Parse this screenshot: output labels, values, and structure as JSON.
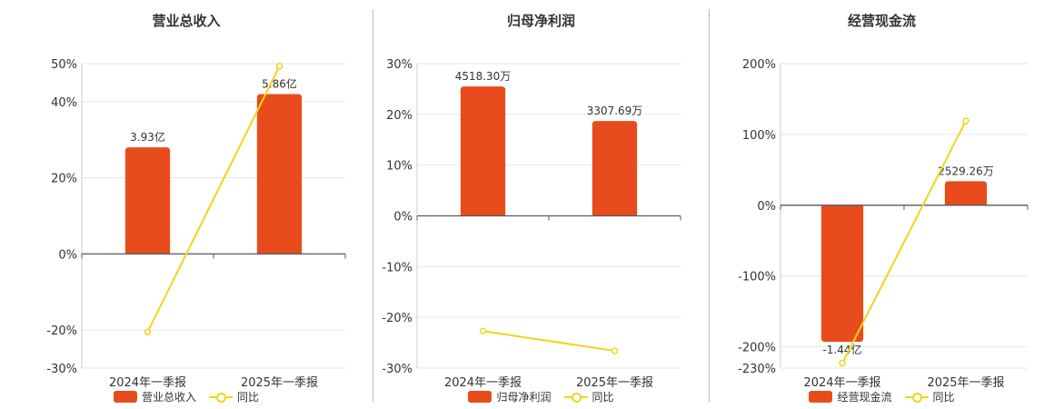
{
  "chart_data": [
    {
      "type": "bar",
      "title": "营业总收入",
      "categories": [
        "2024年一季报",
        "2025年一季报"
      ],
      "series": [
        {
          "name": "营业总收入",
          "type": "bar",
          "value_labels": [
            "3.93亿",
            "5.86亿"
          ],
          "percent": [
            28,
            42
          ]
        },
        {
          "name": "同比",
          "type": "line",
          "percent": [
            -20.5,
            49.3
          ]
        }
      ],
      "y_ticks": [
        {
          "v": 50,
          "label": "50%"
        },
        {
          "v": 40,
          "label": "40%"
        },
        {
          "v": 20,
          "label": "20%"
        },
        {
          "v": 0,
          "label": "0%"
        },
        {
          "v": -20,
          "label": "-20%"
        },
        {
          "v": -30,
          "label": "-30%"
        }
      ],
      "ylim": [
        -30,
        50
      ],
      "bar_color": "#e84c1c",
      "line_color": "#f4d31c"
    },
    {
      "type": "bar",
      "title": "归母净利润",
      "categories": [
        "2024年一季报",
        "2025年一季报"
      ],
      "series": [
        {
          "name": "归母净利润",
          "type": "bar",
          "value_labels": [
            "4518.30万",
            "3307.69万"
          ],
          "percent": [
            25.5,
            18.7
          ]
        },
        {
          "name": "同比",
          "type": "line",
          "percent": [
            -22.7,
            -26.6
          ]
        }
      ],
      "y_ticks": [
        {
          "v": 30,
          "label": "30%"
        },
        {
          "v": 20,
          "label": "20%"
        },
        {
          "v": 10,
          "label": "10%"
        },
        {
          "v": 0,
          "label": "0%"
        },
        {
          "v": -10,
          "label": "-10%"
        },
        {
          "v": -20,
          "label": "-20%"
        },
        {
          "v": -30,
          "label": "-30%"
        }
      ],
      "ylim": [
        -30,
        30
      ],
      "bar_color": "#e84c1c",
      "line_color": "#f4d31c"
    },
    {
      "type": "bar",
      "title": "经营现金流",
      "categories": [
        "2024年一季报",
        "2025年一季报"
      ],
      "series": [
        {
          "name": "经营现金流",
          "type": "bar",
          "value_labels": [
            "-1.44亿",
            "2529.26万"
          ],
          "percent": [
            -193,
            34
          ]
        },
        {
          "name": "同比",
          "type": "line",
          "percent": [
            -223,
            119
          ]
        }
      ],
      "y_ticks": [
        {
          "v": 200,
          "label": "200%"
        },
        {
          "v": 100,
          "label": "100%"
        },
        {
          "v": 0,
          "label": "0%"
        },
        {
          "v": -100,
          "label": "-100%"
        },
        {
          "v": -200,
          "label": "-200%"
        },
        {
          "v": -230,
          "label": "-230%"
        }
      ],
      "ylim": [
        -230,
        200
      ],
      "bar_color": "#e84c1c",
      "line_color": "#f4d31c"
    }
  ],
  "legend": [
    {
      "bar": "营业总收入",
      "line": "同比"
    },
    {
      "bar": "归母净利润",
      "line": "同比"
    },
    {
      "bar": "经营现金流",
      "line": "同比"
    }
  ]
}
